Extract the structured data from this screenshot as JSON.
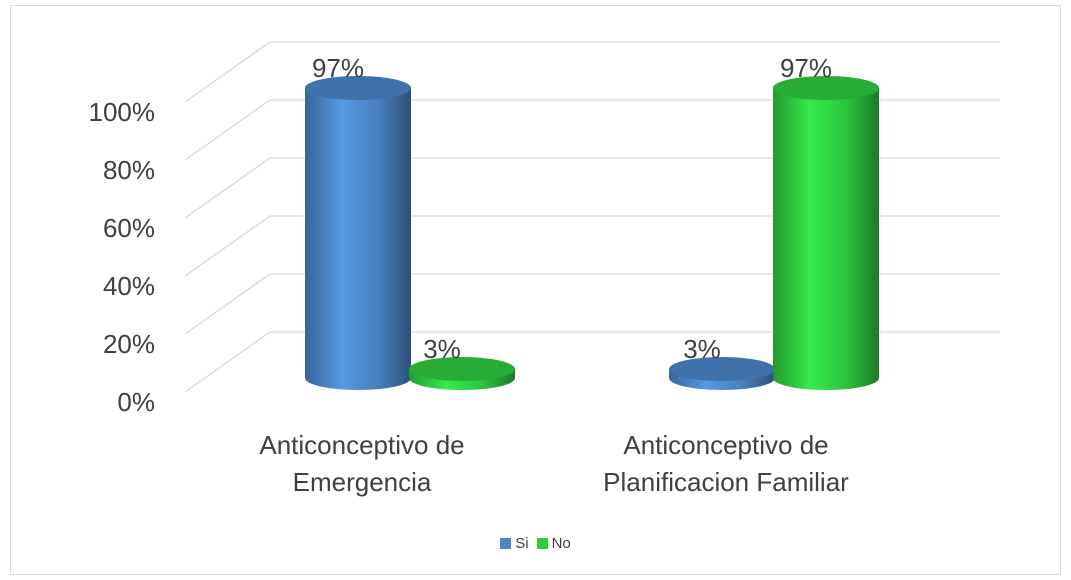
{
  "chart_data": {
    "type": "bar3d",
    "categories": [
      "Anticonceptivo de Emergencia",
      "Anticonceptivo de Planificacion Familiar"
    ],
    "series": [
      {
        "name": "Si",
        "color": "#4a86c8",
        "values": [
          97,
          3
        ],
        "value_labels": [
          "97%",
          "3%"
        ]
      },
      {
        "name": "No",
        "color": "#2ecc40",
        "values": [
          3,
          97
        ],
        "value_labels": [
          "3%",
          "97%"
        ]
      }
    ],
    "ylim": [
      0,
      100
    ],
    "yticks": [
      {
        "value": 0,
        "label": "0%"
      },
      {
        "value": 20,
        "label": "20%"
      },
      {
        "value": 40,
        "label": "40%"
      },
      {
        "value": 60,
        "label": "60%"
      },
      {
        "value": 80,
        "label": "80%"
      },
      {
        "value": 100,
        "label": "100%"
      }
    ],
    "grid": true,
    "legend": "bottom"
  }
}
